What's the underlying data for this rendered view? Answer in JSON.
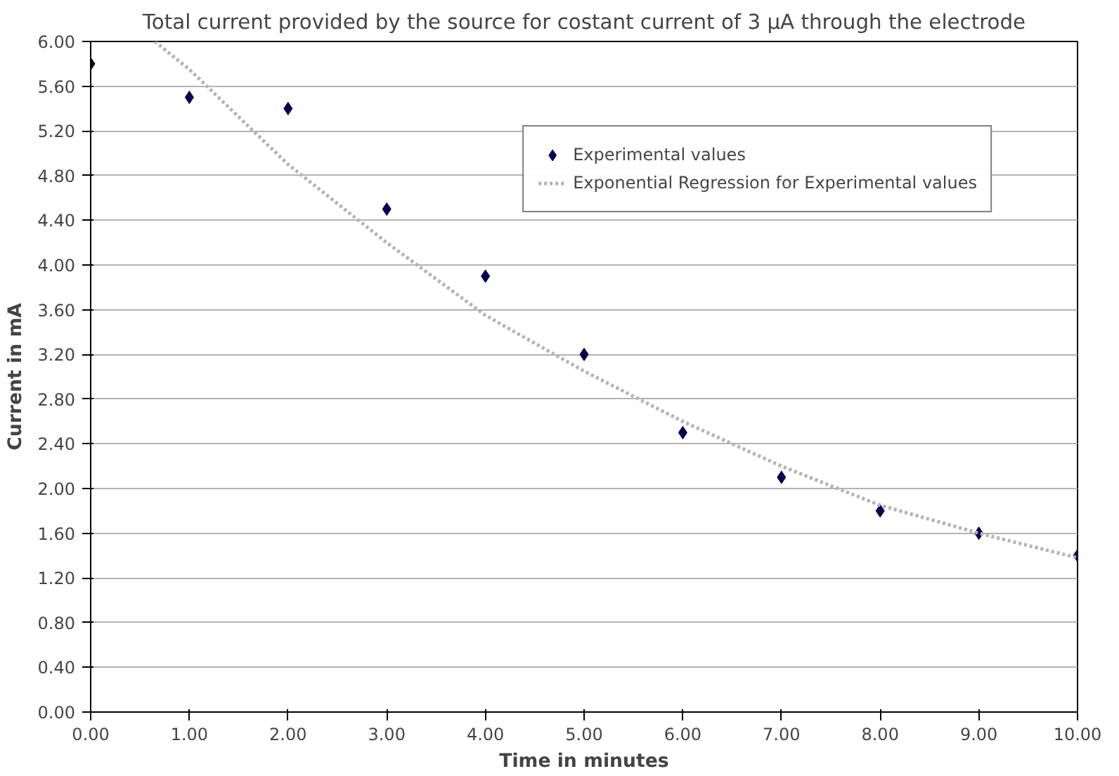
{
  "chart_data": {
    "type": "scatter",
    "title": "Total current provided by the source for costant current of 3 µA through the electrode",
    "xlabel": "Time in minutes",
    "ylabel": "Current in mA",
    "x": [
      0,
      1,
      2,
      3,
      4,
      5,
      6,
      7,
      8,
      9,
      10
    ],
    "series": [
      {
        "name": "Experimental values",
        "color": "#000066",
        "type": "scatter",
        "marker": "diamond",
        "values": [
          5.8,
          5.5,
          5.4,
          4.5,
          3.9,
          3.2,
          2.5,
          2.1,
          1.8,
          1.6,
          1.4
        ]
      },
      {
        "name": "Exponential Regression for Experimental values",
        "color": "#b3b3b3",
        "type": "line",
        "line_style": "dotted",
        "marker": "none",
        "x": [
          0.65,
          1,
          2,
          3,
          4,
          5,
          6,
          7,
          8,
          9,
          10
        ],
        "values": [
          6.0,
          5.75,
          4.9,
          4.2,
          3.55,
          3.05,
          2.6,
          2.2,
          1.85,
          1.6,
          1.38
        ]
      }
    ],
    "xlim": [
      0,
      10
    ],
    "ylim": [
      0,
      6
    ],
    "xticks": [
      {
        "value": 0,
        "label": "0.00"
      },
      {
        "value": 1,
        "label": "1.00"
      },
      {
        "value": 2,
        "label": "2.00"
      },
      {
        "value": 3,
        "label": "3.00"
      },
      {
        "value": 4,
        "label": "4.00"
      },
      {
        "value": 5,
        "label": "5.00"
      },
      {
        "value": 6,
        "label": "6.00"
      },
      {
        "value": 7,
        "label": "7.00"
      },
      {
        "value": 8,
        "label": "8.00"
      },
      {
        "value": 9,
        "label": "9.00"
      },
      {
        "value": 10,
        "label": "10.00"
      }
    ],
    "yticks": [
      {
        "value": 0,
        "label": "0.00"
      },
      {
        "value": 0.4,
        "label": "0.40"
      },
      {
        "value": 0.8,
        "label": "0.80"
      },
      {
        "value": 1.2,
        "label": "1.20"
      },
      {
        "value": 1.6,
        "label": "1.60"
      },
      {
        "value": 2,
        "label": "2.00"
      },
      {
        "value": 2.4,
        "label": "2.40"
      },
      {
        "value": 2.8,
        "label": "2.80"
      },
      {
        "value": 3.2,
        "label": "3.20"
      },
      {
        "value": 3.6,
        "label": "3.60"
      },
      {
        "value": 4,
        "label": "4.00"
      },
      {
        "value": 4.4,
        "label": "4.40"
      },
      {
        "value": 4.8,
        "label": "4.80"
      },
      {
        "value": 5.2,
        "label": "5.20"
      },
      {
        "value": 5.6,
        "label": "5.60"
      },
      {
        "value": 6,
        "label": "6.00"
      }
    ],
    "grid": "y",
    "legend": "top right"
  }
}
